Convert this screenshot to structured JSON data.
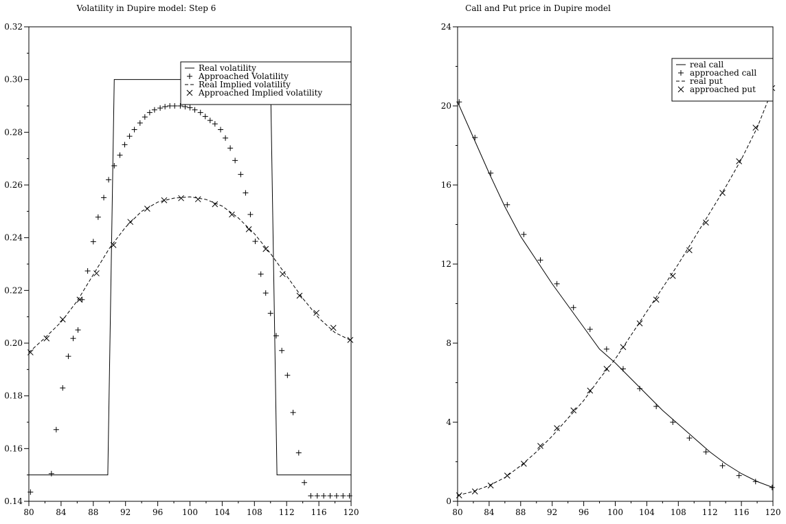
{
  "chart_data": [
    {
      "type": "line",
      "title": "Volatility in Dupire model: Step 6",
      "xlabel": "",
      "ylabel": "",
      "xlim": [
        80,
        120
      ],
      "ylim": [
        0.14,
        0.32
      ],
      "xticks": [
        "80",
        "84",
        "88",
        "92",
        "96",
        "100",
        "104",
        "108",
        "112",
        "116",
        "120"
      ],
      "yticks": [
        "0.14",
        "0.16",
        "0.18",
        "0.20",
        "0.22",
        "0.24",
        "0.26",
        "0.28",
        "0.30",
        "0.32"
      ],
      "grid": false,
      "legend_position": "top-right",
      "series": [
        {
          "name": "Real volatility",
          "style": "solid",
          "x": [
            80,
            89.8,
            90.6,
            110.0,
            110.8,
            120
          ],
          "y": [
            0.15,
            0.15,
            0.3,
            0.3,
            0.15,
            0.15
          ]
        },
        {
          "name": "Approached Volatility",
          "style": "plus",
          "x": [
            80.2,
            82.8,
            83.4,
            84.2,
            84.9,
            85.5,
            86.1,
            86.6,
            87.3,
            88.0,
            88.6,
            89.3,
            89.9,
            90.6,
            91.3,
            91.9,
            92.5,
            93.1,
            93.8,
            94.4,
            95.0,
            95.6,
            96.3,
            96.9,
            97.5,
            98.1,
            98.8,
            99.4,
            100.0,
            100.6,
            101.3,
            101.9,
            102.5,
            103.1,
            103.8,
            104.4,
            105.0,
            105.6,
            106.3,
            106.9,
            107.5,
            108.1,
            108.8,
            109.4,
            110.0,
            110.7,
            111.4,
            112.1,
            112.8,
            113.5,
            114.2,
            115.0,
            115.8,
            116.6,
            117.4,
            118.2,
            119.0,
            119.8
          ],
          "y": [
            0.1435,
            0.1505,
            0.1672,
            0.183,
            0.195,
            0.2018,
            0.205,
            0.2165,
            0.2274,
            0.2385,
            0.2478,
            0.2552,
            0.262,
            0.2673,
            0.2713,
            0.2753,
            0.2785,
            0.281,
            0.2835,
            0.2858,
            0.2875,
            0.2885,
            0.2892,
            0.2897,
            0.29,
            0.29,
            0.29,
            0.2897,
            0.2893,
            0.2885,
            0.2875,
            0.286,
            0.2845,
            0.2832,
            0.281,
            0.2778,
            0.274,
            0.2693,
            0.264,
            0.257,
            0.2488,
            0.2386,
            0.2262,
            0.219,
            0.2113,
            0.2028,
            0.1972,
            0.1878,
            0.1737,
            0.1584,
            0.1471,
            0.1421,
            0.1421,
            0.1421,
            0.1421,
            0.1421,
            0.1421,
            0.1421
          ]
        },
        {
          "name": "Real Implied volatility",
          "style": "dashed",
          "x": [
            80,
            82,
            84,
            86,
            88,
            90,
            92,
            94,
            96,
            98,
            100,
            102,
            104,
            106,
            108,
            110,
            112,
            114,
            116,
            118,
            120
          ],
          "y": [
            0.1965,
            0.202,
            0.208,
            0.216,
            0.226,
            0.236,
            0.244,
            0.25,
            0.2535,
            0.255,
            0.2555,
            0.2545,
            0.252,
            0.2475,
            0.2415,
            0.234,
            0.2255,
            0.217,
            0.2095,
            0.204,
            0.201
          ]
        },
        {
          "name": "Approached Implied volatility",
          "style": "cross",
          "x": [
            80.2,
            82.2,
            84.2,
            86.3,
            88.4,
            90.5,
            92.6,
            94.7,
            96.8,
            98.9,
            101.0,
            103.1,
            105.2,
            107.3,
            109.4,
            111.5,
            113.6,
            115.7,
            117.8,
            119.9
          ],
          "y": [
            0.1965,
            0.2018,
            0.209,
            0.2165,
            0.2265,
            0.2372,
            0.246,
            0.251,
            0.2542,
            0.255,
            0.2546,
            0.2527,
            0.2488,
            0.2432,
            0.2357,
            0.2262,
            0.218,
            0.2115,
            0.2058,
            0.2012
          ]
        }
      ]
    },
    {
      "type": "line",
      "title": "Call and Put price in Dupire model",
      "xlabel": "",
      "ylabel": "",
      "xlim": [
        80,
        120
      ],
      "ylim": [
        0,
        24
      ],
      "xticks": [
        "80",
        "84",
        "88",
        "92",
        "96",
        "100",
        "104",
        "108",
        "112",
        "116",
        "120"
      ],
      "yticks": [
        "0",
        "4",
        "8",
        "12",
        "16",
        "20",
        "24"
      ],
      "grid": false,
      "legend_position": "top-right",
      "series": [
        {
          "name": "real call",
          "style": "solid",
          "x": [
            80,
            82,
            84,
            86,
            88,
            90,
            92,
            94,
            96,
            98,
            100,
            102,
            104,
            106,
            108,
            110,
            112,
            114,
            116,
            118,
            120
          ],
          "y": [
            20.2,
            18.4,
            16.6,
            14.9,
            13.4,
            12.2,
            11.0,
            9.9,
            8.8,
            7.7,
            7.0,
            6.2,
            5.4,
            4.6,
            3.9,
            3.2,
            2.5,
            1.9,
            1.4,
            1.0,
            0.7
          ]
        },
        {
          "name": "approached call",
          "style": "plus",
          "x": [
            80.2,
            82.2,
            84.2,
            86.3,
            88.4,
            90.5,
            92.6,
            94.7,
            96.8,
            98.9,
            101.0,
            103.1,
            105.2,
            107.3,
            109.4,
            111.5,
            113.6,
            115.7,
            117.8,
            119.9
          ],
          "y": [
            20.2,
            18.4,
            16.6,
            15.0,
            13.5,
            12.2,
            11.0,
            9.8,
            8.7,
            7.7,
            6.7,
            5.7,
            4.8,
            4.0,
            3.2,
            2.5,
            1.8,
            1.3,
            1.0,
            0.7
          ]
        },
        {
          "name": "real put",
          "style": "dashed",
          "x": [
            80,
            82,
            84,
            86,
            88,
            90,
            92,
            94,
            96,
            98,
            100,
            102,
            104,
            106,
            108,
            110,
            112,
            114,
            116,
            118,
            120
          ],
          "y": [
            0.3,
            0.5,
            0.8,
            1.2,
            1.8,
            2.5,
            3.3,
            4.2,
            5.1,
            6.2,
            7.2,
            8.4,
            9.6,
            10.8,
            12.0,
            13.3,
            14.6,
            15.9,
            17.3,
            18.9,
            20.9
          ]
        },
        {
          "name": "approached put",
          "style": "cross",
          "x": [
            80.2,
            82.2,
            84.2,
            86.3,
            88.4,
            90.5,
            92.6,
            94.7,
            96.8,
            98.9,
            101.0,
            103.1,
            105.2,
            107.3,
            109.4,
            111.5,
            113.6,
            115.7,
            117.8,
            119.9
          ],
          "y": [
            0.3,
            0.5,
            0.8,
            1.3,
            1.9,
            2.8,
            3.7,
            4.6,
            5.6,
            6.7,
            7.8,
            9.0,
            10.2,
            11.4,
            12.7,
            14.1,
            15.6,
            17.2,
            18.9,
            20.9
          ]
        }
      ]
    }
  ]
}
